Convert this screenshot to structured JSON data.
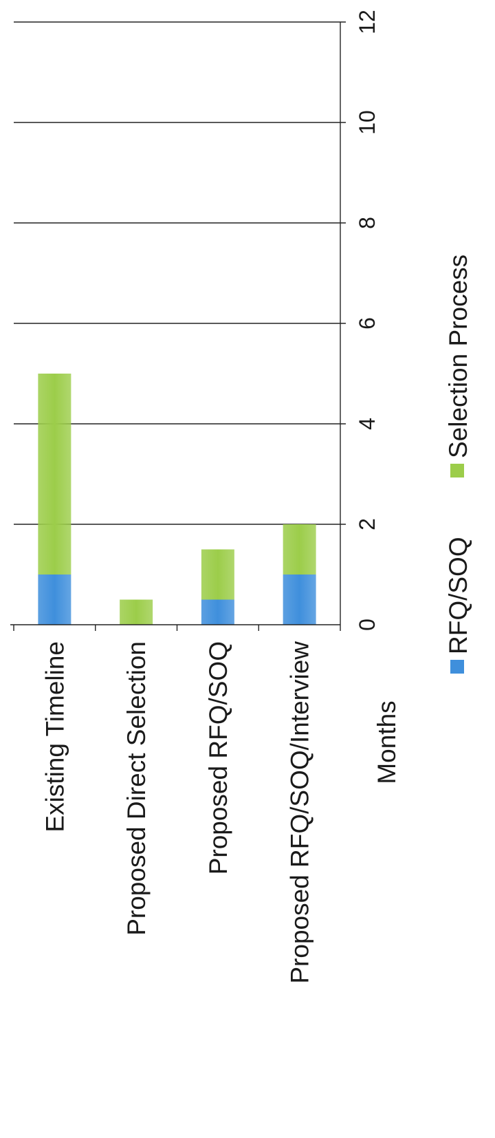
{
  "chart_data": {
    "type": "bar",
    "orientation": "horizontal",
    "stacked": true,
    "categories": [
      "Existing Timeline",
      "Proposed Direct Selection",
      "Proposed RFQ/SOQ",
      "Proposed RFQ/SOQ/Interview"
    ],
    "series": [
      {
        "name": "RFQ/SOQ",
        "values": [
          1,
          0,
          0.5,
          1
        ],
        "color": "#3f8fdc"
      },
      {
        "name": "Selection Process",
        "values": [
          4,
          0.5,
          1,
          1
        ],
        "color": "#9ccd4a"
      }
    ],
    "xlabel": "Months",
    "ylabel": "",
    "xlim": [
      0,
      12
    ],
    "xticks": [
      "0",
      "2",
      "4",
      "6",
      "8",
      "10",
      "12"
    ],
    "grid": true,
    "legend_position": "bottom"
  }
}
